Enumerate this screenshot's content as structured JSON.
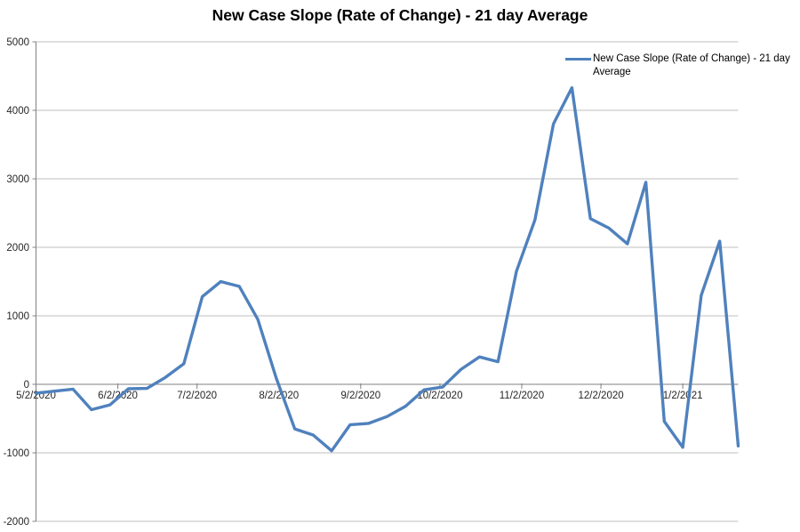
{
  "chart": {
    "title": "New Case Slope (Rate of Change) - 21 day Average",
    "legend_label": "New Case Slope (Rate of Change) - 21 day Average"
  },
  "chart_data": {
    "type": "line",
    "title": "New Case Slope (Rate of Change) - 21 day Average",
    "xlabel": "",
    "ylabel": "",
    "x": [
      "5/2/2020",
      "5/9/2020",
      "5/16/2020",
      "5/23/2020",
      "5/30/2020",
      "6/6/2020",
      "6/13/2020",
      "6/20/2020",
      "6/27/2020",
      "7/4/2020",
      "7/11/2020",
      "7/18/2020",
      "7/25/2020",
      "8/1/2020",
      "8/8/2020",
      "8/15/2020",
      "8/22/2020",
      "8/29/2020",
      "9/5/2020",
      "9/12/2020",
      "9/19/2020",
      "9/26/2020",
      "10/3/2020",
      "10/10/2020",
      "10/17/2020",
      "10/24/2020",
      "10/31/2020",
      "11/7/2020",
      "11/14/2020",
      "11/21/2020",
      "11/28/2020",
      "12/5/2020",
      "12/12/2020",
      "12/19/2020",
      "12/26/2020",
      "1/2/2021",
      "1/9/2021",
      "1/16/2021",
      "1/23/2021"
    ],
    "values": [
      -130,
      -100,
      -70,
      -370,
      -300,
      -65,
      -60,
      100,
      300,
      1280,
      1500,
      1430,
      950,
      90,
      -650,
      -740,
      -970,
      -590,
      -570,
      -470,
      -320,
      -80,
      -40,
      220,
      400,
      330,
      1650,
      2400,
      3800,
      4330,
      2420,
      2280,
      2050,
      2950,
      -540,
      -920,
      1300,
      2090,
      -900
    ],
    "ylim": [
      -2000,
      5000
    ],
    "yticks": [
      5000,
      4000,
      3000,
      2000,
      1000,
      0,
      -1000,
      -2000
    ],
    "xticks": {
      "labels": [
        "5/2/2020",
        "6/2/2020",
        "7/2/2020",
        "8/2/2020",
        "9/2/2020",
        "10/2/2020",
        "11/2/2020",
        "12/2/2020",
        "1/2/2021"
      ],
      "day_offsets": [
        0,
        31,
        61,
        92,
        123,
        153,
        184,
        214,
        245
      ]
    },
    "grid": "horizontal",
    "legend": {
      "entries": [
        "New Case Slope (Rate of Change) - 21 day Average"
      ],
      "position": "top-right-inside"
    },
    "colors": {
      "series": "#4F81BD",
      "gridline": "#BFBFBF",
      "axis": "#808080",
      "tick_text": "#262626",
      "title_text": "#000000"
    }
  }
}
